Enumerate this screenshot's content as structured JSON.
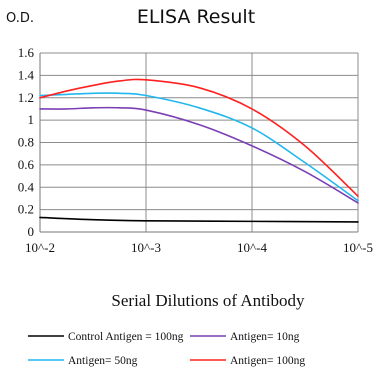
{
  "chart_data": {
    "type": "line",
    "title": "ELISA Result",
    "ylabel": "O.D.",
    "xlabel": "Serial Dilutions of Antibody",
    "categories": [
      "10^-2",
      "10^-3",
      "10^-4",
      "10^-5"
    ],
    "ylim": [
      0,
      1.6
    ],
    "yticks": [
      "0",
      "0.2",
      "0.4",
      "0.6",
      "0.8",
      "1",
      "1.2",
      "1.4",
      "1.6"
    ],
    "grid": true,
    "legend_position": "bottom",
    "series": [
      {
        "name": "Control Antigen = 100ng",
        "color": "#000000",
        "points": [
          [
            0,
            0.13
          ],
          [
            0.5,
            0.11
          ],
          [
            1,
            0.1
          ],
          [
            2,
            0.095
          ],
          [
            3,
            0.09
          ]
        ]
      },
      {
        "name": "Antigen= 10ng",
        "color": "#7b3fb5",
        "points": [
          [
            0,
            1.1
          ],
          [
            0.25,
            1.1
          ],
          [
            0.5,
            1.11
          ],
          [
            0.75,
            1.11
          ],
          [
            1,
            1.09
          ],
          [
            1.5,
            0.96
          ],
          [
            2,
            0.77
          ],
          [
            2.5,
            0.54
          ],
          [
            3,
            0.26
          ]
        ]
      },
      {
        "name": "Antigen= 50ng",
        "color": "#22b7ee",
        "points": [
          [
            0,
            1.22
          ],
          [
            0.25,
            1.23
          ],
          [
            0.5,
            1.24
          ],
          [
            0.75,
            1.24
          ],
          [
            1,
            1.22
          ],
          [
            1.5,
            1.11
          ],
          [
            2,
            0.93
          ],
          [
            2.5,
            0.62
          ],
          [
            3,
            0.28
          ]
        ]
      },
      {
        "name": "Antigen= 100ng",
        "color": "#ff2020",
        "points": [
          [
            0,
            1.2
          ],
          [
            0.25,
            1.26
          ],
          [
            0.5,
            1.31
          ],
          [
            0.75,
            1.35
          ],
          [
            1,
            1.36
          ],
          [
            1.5,
            1.29
          ],
          [
            2,
            1.1
          ],
          [
            2.5,
            0.77
          ],
          [
            3,
            0.32
          ]
        ]
      }
    ]
  }
}
